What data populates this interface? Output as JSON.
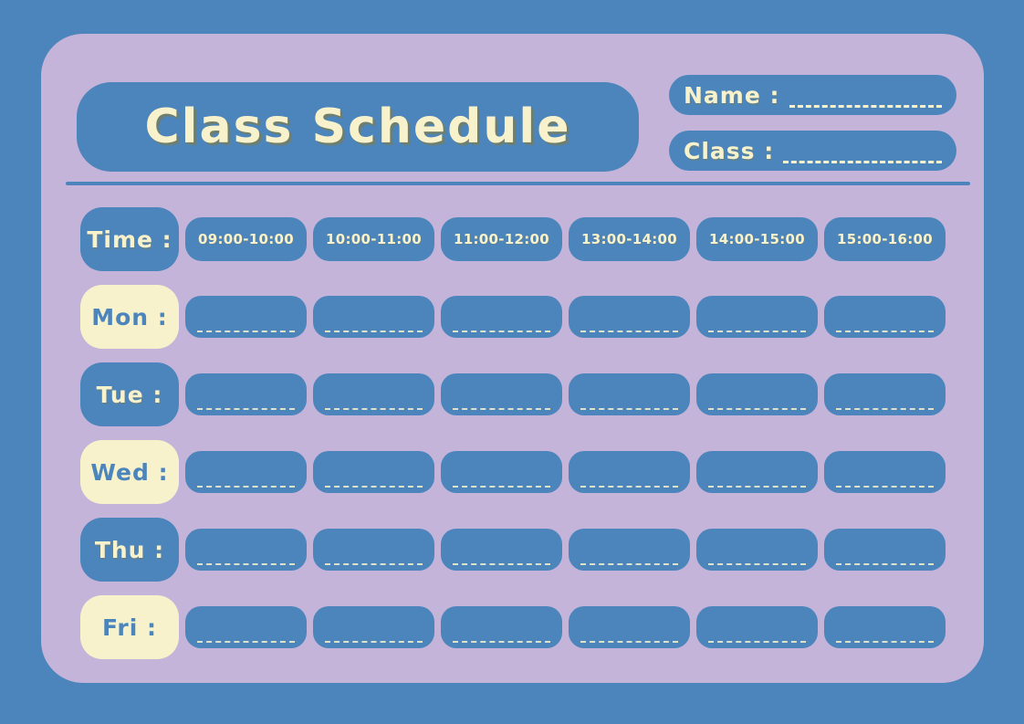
{
  "header": {
    "title": "Class Schedule",
    "name_label": "Name :",
    "class_label": "Class :"
  },
  "schedule": {
    "time_label": "Time :",
    "time_slots": [
      "09:00-10:00",
      "10:00-11:00",
      "11:00-12:00",
      "13:00-14:00",
      "14:00-15:00",
      "15:00-16:00"
    ],
    "days": [
      {
        "label": "Mon :",
        "style": "cream"
      },
      {
        "label": "Tue :",
        "style": "blue"
      },
      {
        "label": "Wed :",
        "style": "cream"
      },
      {
        "label": "Thu :",
        "style": "blue"
      },
      {
        "label": "Fri :",
        "style": "cream"
      }
    ]
  },
  "colors": {
    "background_blue": "#4C85BB",
    "card_lavender": "#C5B4D9",
    "cream": "#F8F2CC",
    "title_shadow_olive": "#7A7C54"
  }
}
